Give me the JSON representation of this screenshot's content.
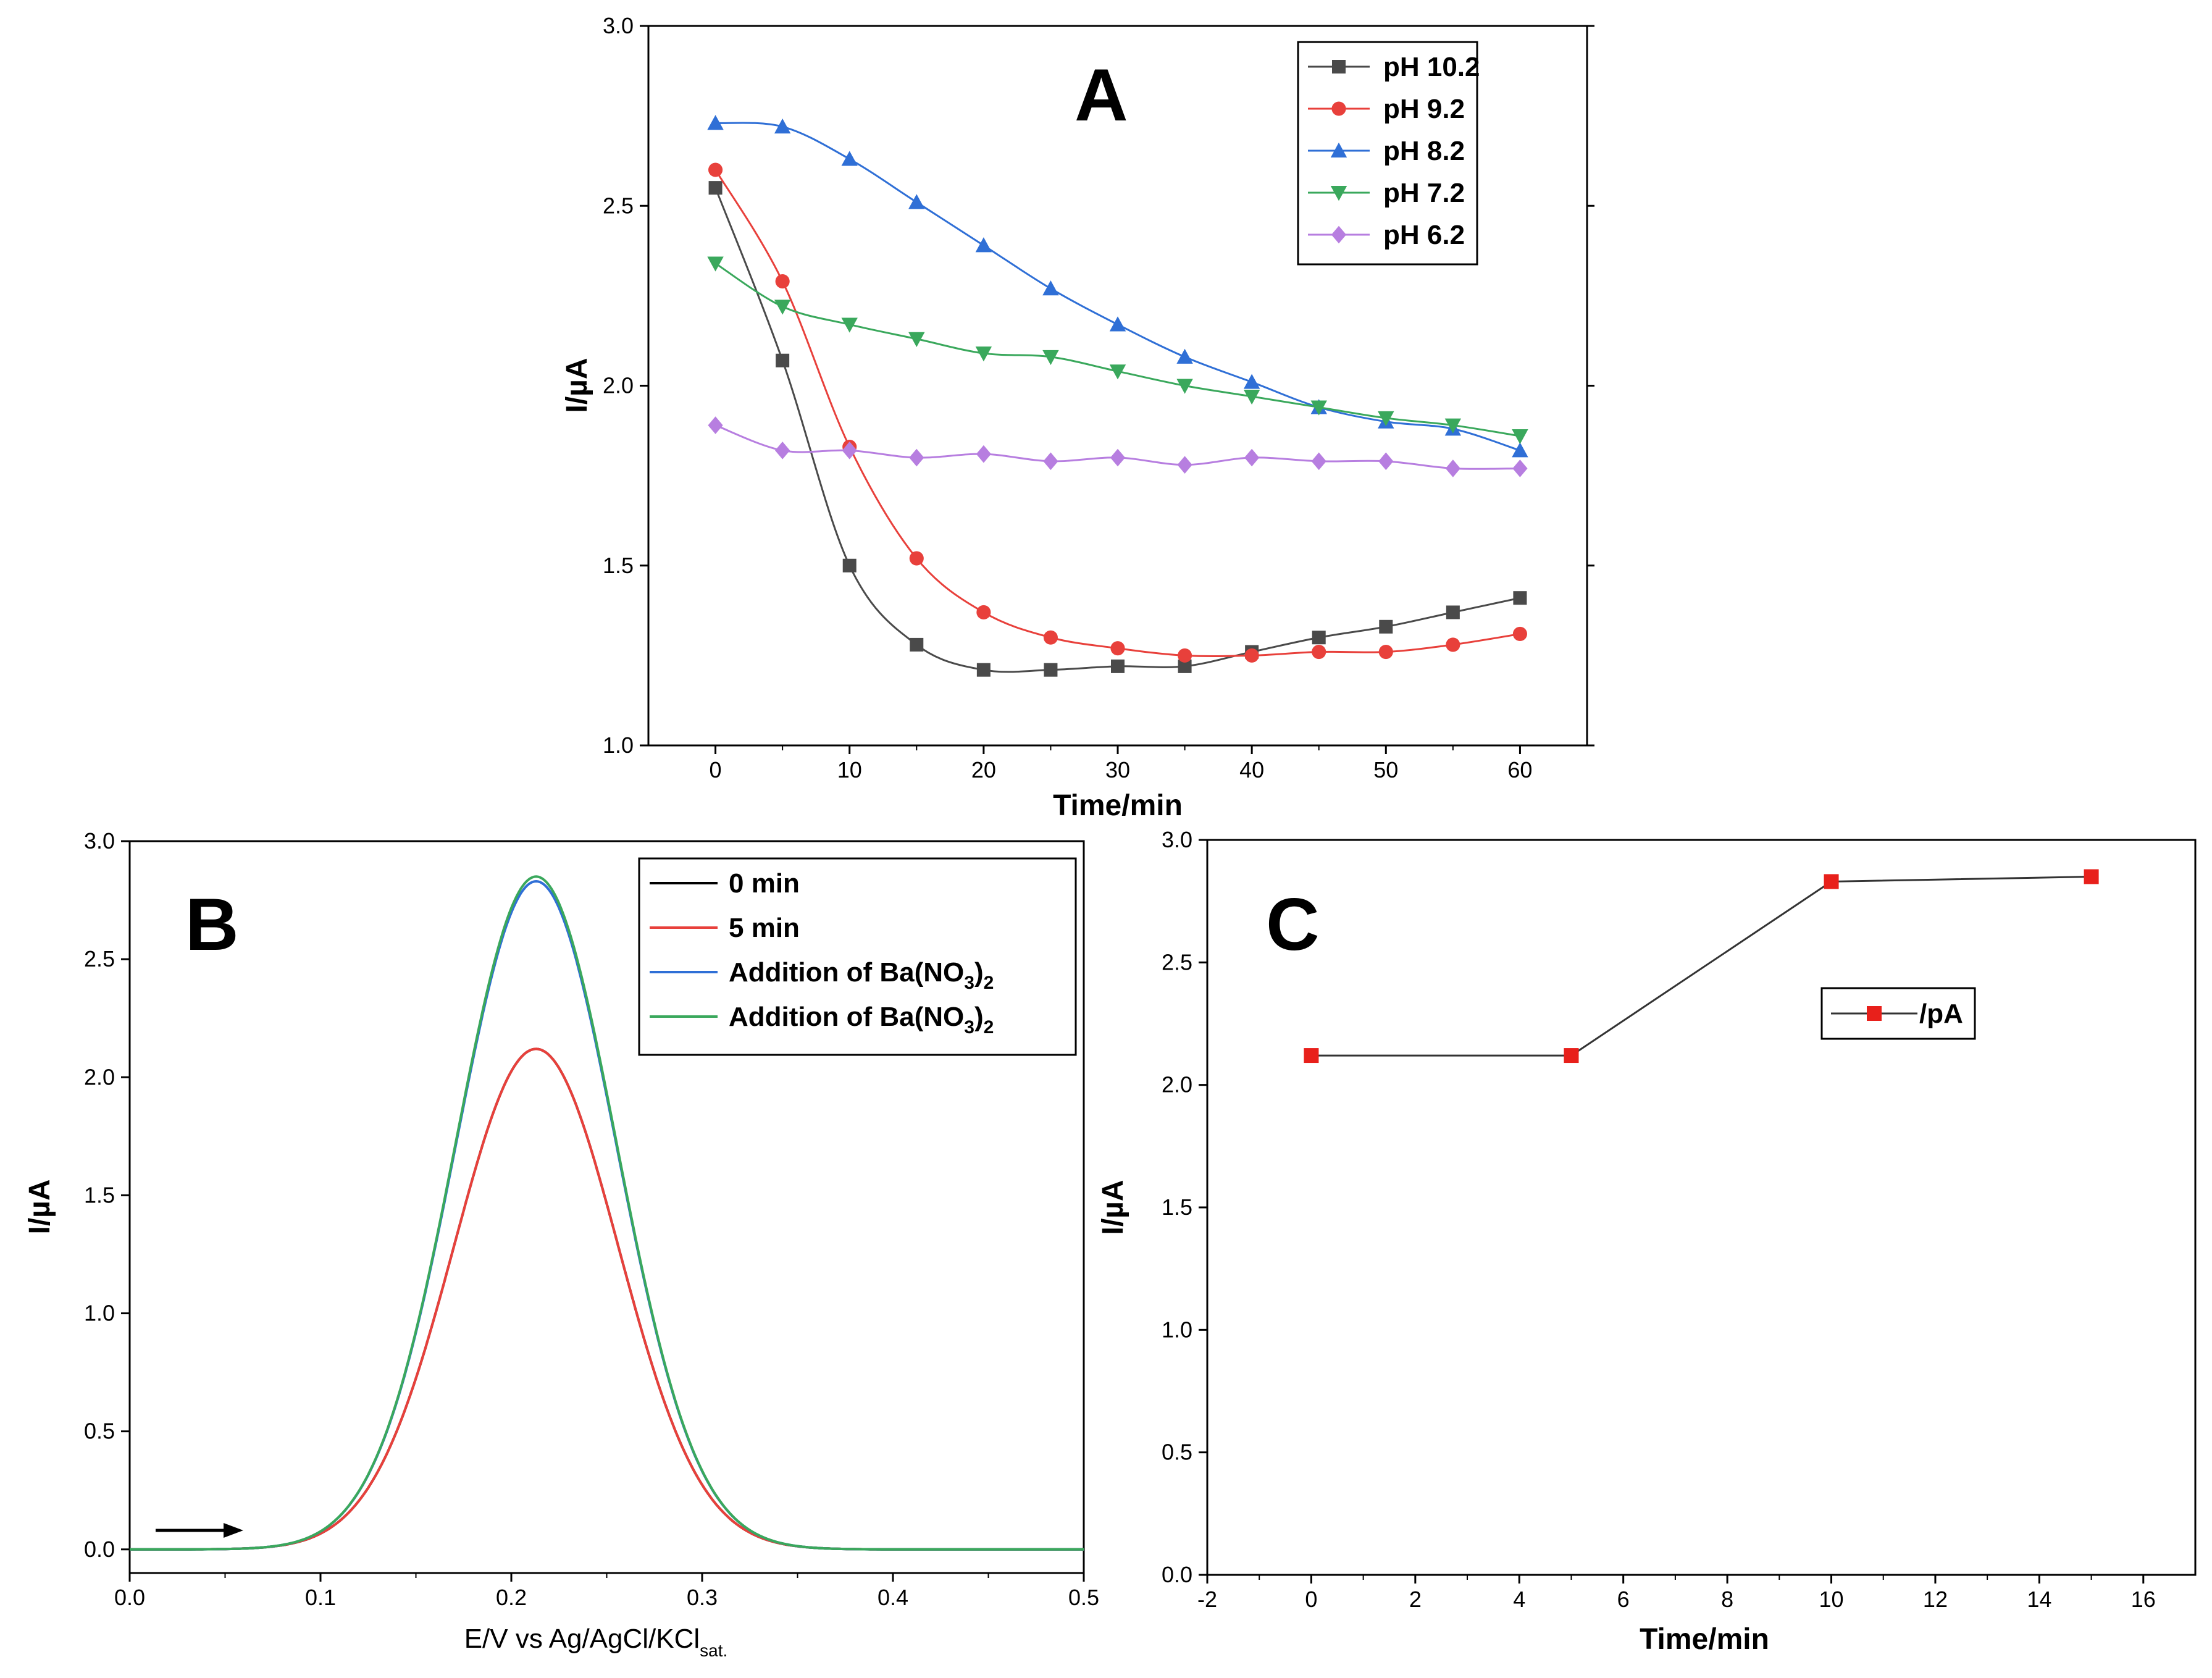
{
  "chart_data": [
    {
      "panel": "A",
      "type": "line",
      "title": "A",
      "xlabel": "Time/min",
      "ylabel": "I/µA",
      "xlim": [
        -5,
        65
      ],
      "ylim": [
        1.0,
        3.0
      ],
      "xticks": [
        0,
        10,
        20,
        30,
        40,
        50,
        60
      ],
      "yticks": [
        1.0,
        1.5,
        2.0,
        2.5,
        3.0
      ],
      "legend_position": "top-right",
      "x": [
        0,
        5,
        10,
        15,
        20,
        25,
        30,
        35,
        40,
        45,
        50,
        55,
        60
      ],
      "series": [
        {
          "name": "pH 10.2",
          "color": "#4a4a4a",
          "marker": "square",
          "values": [
            2.55,
            2.07,
            1.5,
            1.28,
            1.21,
            1.21,
            1.22,
            1.22,
            1.26,
            1.3,
            1.33,
            1.37,
            1.41
          ]
        },
        {
          "name": "pH 9.2",
          "color": "#e8403b",
          "marker": "circle",
          "values": [
            2.6,
            2.29,
            1.83,
            1.52,
            1.37,
            1.3,
            1.27,
            1.25,
            1.25,
            1.26,
            1.26,
            1.28,
            1.31
          ]
        },
        {
          "name": "pH 8.2",
          "color": "#2f6fd6",
          "marker": "triangle-up",
          "values": [
            2.73,
            2.72,
            2.63,
            2.51,
            2.39,
            2.27,
            2.17,
            2.08,
            2.01,
            1.94,
            1.9,
            1.88,
            1.82
          ]
        },
        {
          "name": "pH 7.2",
          "color": "#3aa85c",
          "marker": "triangle-down",
          "values": [
            2.34,
            2.22,
            2.17,
            2.13,
            2.09,
            2.08,
            2.04,
            2.0,
            1.97,
            1.94,
            1.91,
            1.89,
            1.86
          ]
        },
        {
          "name": "pH 6.2",
          "color": "#b77ee0",
          "marker": "diamond",
          "values": [
            1.89,
            1.82,
            1.82,
            1.8,
            1.81,
            1.79,
            1.8,
            1.78,
            1.8,
            1.79,
            1.79,
            1.77,
            1.77
          ]
        }
      ]
    },
    {
      "panel": "B",
      "type": "line",
      "title": "B",
      "xlabel_main": "E/V vs Ag/AgCl/KCl",
      "xlabel_sub": "sat.",
      "ylabel": "I/µA",
      "xlim": [
        0.0,
        0.5
      ],
      "ylim": [
        -0.1,
        3.0
      ],
      "xticks": [
        0.0,
        0.1,
        0.2,
        0.3,
        0.4,
        0.5
      ],
      "yticks": [
        0.0,
        0.5,
        1.0,
        1.5,
        2.0,
        2.5,
        3.0
      ],
      "legend_position": "top-right",
      "peak_center": 0.213,
      "series": [
        {
          "name": "0 min",
          "color": "#000000",
          "peak_height": 2.12,
          "peak_width": 0.043
        },
        {
          "name": "5 min",
          "color": "#e8403b",
          "peak_height": 2.12,
          "peak_width": 0.043
        },
        {
          "name_main": "Addition of Ba(NO",
          "sub": "3",
          "close": ")",
          "sub2": "2",
          "color": "#2f6fd6",
          "peak_height": 2.83,
          "peak_width": 0.042
        },
        {
          "name_main": "Addition of Ba(NO",
          "sub": "3",
          "close": ")",
          "sub2": "2",
          "color": "#3aa85c",
          "peak_height": 2.85,
          "peak_width": 0.042
        }
      ],
      "annotation": "scan direction arrow"
    },
    {
      "panel": "C",
      "type": "line",
      "title": "C",
      "xlabel": "Time/min",
      "ylabel": "I/µA",
      "xlim": [
        -2,
        17
      ],
      "ylim": [
        0.0,
        3.0
      ],
      "xticks": [
        -2,
        0,
        2,
        4,
        6,
        8,
        10,
        12,
        14,
        16
      ],
      "yticks": [
        0.0,
        0.5,
        1.0,
        1.5,
        2.0,
        2.5,
        3.0
      ],
      "legend_position": "center-right",
      "series": [
        {
          "name": "/pA",
          "color": "#e8201b",
          "marker": "square",
          "x": [
            0,
            5,
            10,
            15
          ],
          "values": [
            2.12,
            2.12,
            2.83,
            2.85
          ]
        }
      ]
    }
  ]
}
